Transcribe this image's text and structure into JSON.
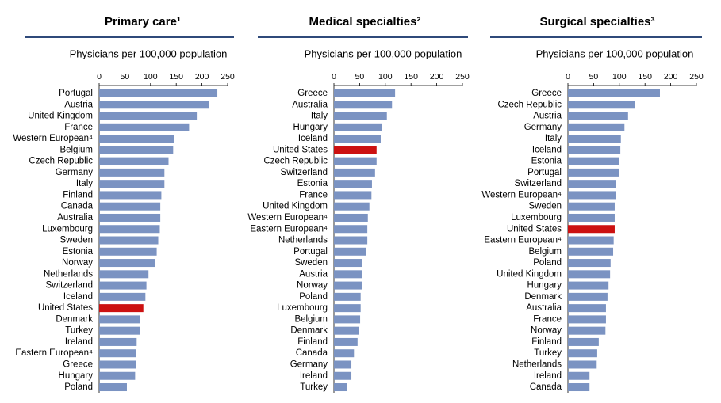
{
  "chart_data": [
    {
      "type": "barh",
      "title": "Primary care¹",
      "xlabel": "Physicians per 100,000 population",
      "categories": [
        "Portugal",
        "Austria",
        "United Kingdom",
        "France",
        "Western European⁴",
        "Belgium",
        "Czech Republic",
        "Germany",
        "Italy",
        "Finland",
        "Canada",
        "Australia",
        "Luxembourg",
        "Sweden",
        "Estonia",
        "Norway",
        "Netherlands",
        "Switzerland",
        "Iceland",
        "United States",
        "Denmark",
        "Turkey",
        "Ireland",
        "Eastern European⁴",
        "Greece",
        "Hungary",
        "Poland"
      ],
      "values": [
        230,
        213,
        190,
        175,
        146,
        144,
        135,
        127,
        127,
        121,
        119,
        119,
        118,
        115,
        112,
        109,
        96,
        92,
        90,
        86,
        80,
        80,
        73,
        72,
        71,
        70,
        54
      ],
      "color": "#7b93c2",
      "highlight": "United States",
      "highlight_color": "#cc1111",
      "xlim": [
        0,
        250
      ],
      "xticks": [
        0,
        50,
        100,
        150,
        200,
        250
      ]
    },
    {
      "type": "barh",
      "title": "Medical specialties²",
      "xlabel": "Physicians per 100,000 population",
      "categories": [
        "Greece",
        "Australia",
        "Italy",
        "Hungary",
        "Iceland",
        "United States",
        "Czech Republic",
        "Switzerland",
        "Estonia",
        "France",
        "United Kingdom",
        "Western European⁴",
        "Eastern European⁴",
        "Netherlands",
        "Portugal",
        "Sweden",
        "Austria",
        "Norway",
        "Poland",
        "Luxembourg",
        "Belgium",
        "Denmark",
        "Finland",
        "Canada",
        "Germany",
        "Ireland",
        "Turkey"
      ],
      "values": [
        119,
        113,
        103,
        93,
        91,
        83,
        83,
        80,
        74,
        73,
        69,
        66,
        65,
        65,
        63,
        54,
        54,
        54,
        52,
        52,
        51,
        48,
        46,
        39,
        34,
        34,
        26
      ],
      "color": "#7b93c2",
      "highlight": "United States",
      "highlight_color": "#cc1111",
      "xlim": [
        0,
        250
      ],
      "xticks": [
        0,
        50,
        100,
        150,
        200,
        250
      ]
    },
    {
      "type": "barh",
      "title": "Surgical specialties³",
      "xlabel": "Physicians per 100,000 population",
      "categories": [
        "Greece",
        "Czech Republic",
        "Austria",
        "Germany",
        "Italy",
        "Iceland",
        "Estonia",
        "Portugal",
        "Switzerland",
        "Western European⁴",
        "Sweden",
        "Luxembourg",
        "United States",
        "Eastern European⁴",
        "Belgium",
        "Poland",
        "United Kingdom",
        "Hungary",
        "Denmark",
        "Australia",
        "France",
        "Norway",
        "Finland",
        "Turkey",
        "Netherlands",
        "Ireland",
        "Canada"
      ],
      "values": [
        179,
        130,
        117,
        110,
        103,
        102,
        100,
        99,
        94,
        93,
        91,
        91,
        91,
        89,
        88,
        83,
        82,
        79,
        77,
        74,
        74,
        73,
        60,
        57,
        56,
        42,
        42
      ],
      "color": "#7b93c2",
      "highlight": "United States",
      "highlight_color": "#cc1111",
      "xlim": [
        0,
        250
      ],
      "xticks": [
        0,
        50,
        100,
        150,
        200,
        250
      ]
    }
  ]
}
